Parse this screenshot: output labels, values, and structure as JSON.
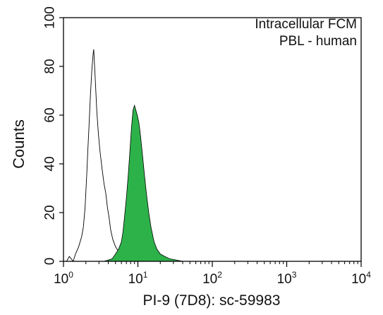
{
  "chart_data": {
    "type": "area",
    "xscale": "log",
    "xlim": [
      1,
      10000
    ],
    "ylim": [
      0,
      100
    ],
    "xlabel": "PI-9 (7D8): sc-59983",
    "ylabel": "Counts",
    "annotations": [
      "Intracellular FCM",
      "PBL - human"
    ],
    "x_ticks": [
      {
        "base": "10",
        "exp": "0",
        "value": 1
      },
      {
        "base": "10",
        "exp": "1",
        "value": 10
      },
      {
        "base": "10",
        "exp": "2",
        "value": 100
      },
      {
        "base": "10",
        "exp": "3",
        "value": 1000
      },
      {
        "base": "10",
        "exp": "4",
        "value": 10000
      }
    ],
    "y_ticks": [
      "0",
      "20",
      "40",
      "60",
      "80",
      "100"
    ],
    "series": [
      {
        "style": "outline",
        "color": "#000000",
        "points": [
          [
            1.1,
            0
          ],
          [
            1.2,
            2
          ],
          [
            1.35,
            0
          ],
          [
            1.45,
            3
          ],
          [
            1.6,
            6
          ],
          [
            1.75,
            10
          ],
          [
            1.85,
            14
          ],
          [
            1.95,
            22
          ],
          [
            2.05,
            35
          ],
          [
            2.12,
            45
          ],
          [
            2.2,
            55
          ],
          [
            2.3,
            68
          ],
          [
            2.4,
            78
          ],
          [
            2.5,
            85
          ],
          [
            2.55,
            87
          ],
          [
            2.62,
            80
          ],
          [
            2.7,
            72
          ],
          [
            2.8,
            62
          ],
          [
            2.95,
            52
          ],
          [
            3.1,
            45
          ],
          [
            3.3,
            38
          ],
          [
            3.5,
            32
          ],
          [
            3.7,
            28
          ],
          [
            3.9,
            22
          ],
          [
            4.1,
            18
          ],
          [
            4.3,
            13
          ],
          [
            4.6,
            9
          ],
          [
            5.0,
            6
          ],
          [
            5.5,
            4
          ],
          [
            6.0,
            3
          ],
          [
            7.0,
            2
          ],
          [
            8.0,
            1
          ],
          [
            9.0,
            2
          ],
          [
            10.0,
            1
          ],
          [
            11.0,
            2
          ],
          [
            12.0,
            0.5
          ],
          [
            13.0,
            0
          ]
        ]
      },
      {
        "style": "filled",
        "color": "#2db24a",
        "points": [
          [
            3.5,
            0
          ],
          [
            4.5,
            1
          ],
          [
            5.0,
            3
          ],
          [
            5.5,
            5
          ],
          [
            6.0,
            8
          ],
          [
            6.3,
            12
          ],
          [
            6.6,
            18
          ],
          [
            7.0,
            26
          ],
          [
            7.4,
            35
          ],
          [
            7.8,
            45
          ],
          [
            8.2,
            55
          ],
          [
            8.6,
            62
          ],
          [
            9.0,
            64
          ],
          [
            9.4,
            62
          ],
          [
            9.8,
            60
          ],
          [
            10.3,
            57
          ],
          [
            10.8,
            52
          ],
          [
            11.5,
            44
          ],
          [
            12.2,
            36
          ],
          [
            13.0,
            28
          ],
          [
            14.0,
            20
          ],
          [
            15.0,
            14
          ],
          [
            16.5,
            8
          ],
          [
            18.0,
            5
          ],
          [
            20.0,
            3
          ],
          [
            23.0,
            2
          ],
          [
            27.0,
            1
          ],
          [
            33.0,
            0.5
          ],
          [
            40.0,
            0
          ]
        ]
      }
    ]
  }
}
